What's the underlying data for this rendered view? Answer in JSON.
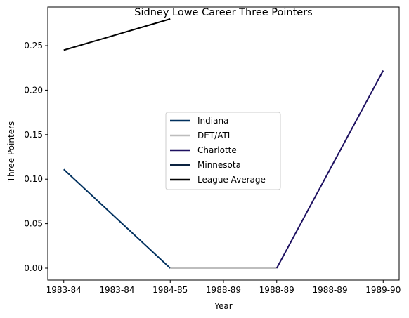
{
  "chart_data": {
    "type": "line",
    "title": "Sidney Lowe Career Three Pointers",
    "xlabel": "Year",
    "ylabel": "Three Pointers",
    "x_tick_labels": [
      "1983-84",
      "1983-84",
      "1984-85",
      "1988-89",
      "1988-89",
      "1988-89",
      "1989-90"
    ],
    "y_ticks": [
      "0.00",
      "0.05",
      "0.10",
      "0.15",
      "0.20",
      "0.25"
    ],
    "ylim": [
      -0.0134,
      0.2934
    ],
    "xlim": [
      -0.15,
      3.15
    ],
    "grid": false,
    "legend_position": "center",
    "series": [
      {
        "name": "Indiana",
        "color": "#00305e",
        "points": [
          [
            0,
            0.111
          ],
          [
            1,
            0.0
          ]
        ]
      },
      {
        "name": "DET/ATL",
        "color": "#bdbdbd",
        "points": [
          [
            1,
            0.0
          ],
          [
            2,
            0.0
          ]
        ]
      },
      {
        "name": "Charlotte",
        "color": "#1d1060",
        "points": [
          [
            2,
            0.0
          ],
          [
            3,
            0.222
          ]
        ]
      },
      {
        "name": "Minnesota",
        "color": "#0c2340",
        "points": []
      },
      {
        "name": "League Average",
        "color": "#000000",
        "points": [
          [
            0,
            0.245
          ],
          [
            1,
            0.28
          ]
        ]
      }
    ]
  }
}
